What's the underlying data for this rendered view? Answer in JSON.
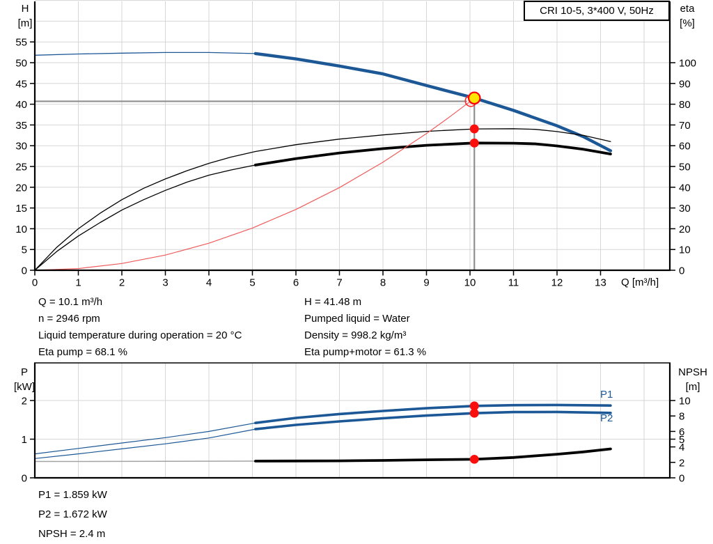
{
  "header": {
    "title": "CRI 10-5, 3*400 V, 50Hz"
  },
  "axis_corner_labels": {
    "h": [
      "H",
      "[m]"
    ],
    "eta": [
      "eta",
      "[%]"
    ],
    "p": [
      "P",
      "[kW]"
    ],
    "npsh": [
      "NPSH",
      "[m]"
    ],
    "q": "Q [m³/h]"
  },
  "curve_labels": {
    "p1": "P1",
    "p2": "P2"
  },
  "info_block": {
    "left": [
      "Q = 10.1 m³/h",
      "n = 2946 rpm",
      "Liquid temperature during operation = 20 °C",
      "Eta pump = 68.1 %"
    ],
    "right": [
      "H = 41.48 m",
      "Pumped liquid = Water",
      "Density = 998.2 kg/m³",
      "Eta pump+motor = 61.3 %"
    ]
  },
  "results_block": [
    "P1 = 1.859 kW",
    "P2 = 1.672 kW",
    "NPSH = 2.4 m"
  ],
  "colors": {
    "blue": "#1c5796",
    "black": "#000000",
    "red": "#fb0e0c",
    "red_line": "#f05a5a",
    "red_ring": "#ff2a2a",
    "yellow": "#ffe600",
    "gray_ref": "#8f8f8f",
    "thin_gray": "#a3a3a3",
    "grid": "#d6d6d6"
  },
  "chart_data": [
    {
      "type": "line",
      "title": "CRI 10-5, 3*400 V, 50Hz",
      "x_axis": {
        "label": "Q [m³/h]",
        "min": 0,
        "max": 14.6,
        "tick_labels": [
          0,
          1,
          2,
          3,
          4,
          5,
          6,
          7,
          8,
          9,
          10,
          11,
          12,
          13
        ],
        "gridlines": [
          1,
          2,
          3,
          4,
          5,
          6,
          7,
          8,
          9,
          10,
          11,
          12,
          13,
          14
        ]
      },
      "y_left": {
        "label": "H [m]",
        "min": 0,
        "max": 65.1,
        "tick_labels": [
          0,
          5,
          10,
          15,
          20,
          25,
          30,
          35,
          40,
          45,
          50,
          55
        ],
        "gridlines": [
          5,
          10,
          15,
          20,
          25,
          30,
          35,
          40,
          45,
          50,
          55,
          60,
          65
        ]
      },
      "y_right": {
        "label": "eta [%]",
        "min": 0,
        "max": 130.2,
        "tick_labels": [
          0,
          10,
          20,
          30,
          40,
          50,
          60,
          70,
          80,
          90,
          100
        ]
      },
      "duty_point": {
        "Q": 10.1,
        "H": 41.48,
        "eta_pump": 68.1,
        "eta_pump_motor": 61.3
      },
      "series": [
        {
          "name": "H curve",
          "axis": "left",
          "color": "#1c5796",
          "w_thin": 1.3,
          "w_bold": 4.4,
          "bold_from": 5.07,
          "points": [
            [
              0,
              51.8
            ],
            [
              1,
              52.1
            ],
            [
              2,
              52.3
            ],
            [
              3,
              52.45
            ],
            [
              4,
              52.45
            ],
            [
              5.07,
              52.2
            ],
            [
              6,
              50.9
            ],
            [
              7,
              49.2
            ],
            [
              8,
              47.3
            ],
            [
              9,
              44.5
            ],
            [
              10.1,
              41.48
            ],
            [
              11,
              38.5
            ],
            [
              12,
              34.8
            ],
            [
              12.6,
              32.2
            ],
            [
              13.23,
              28.8
            ]
          ]
        },
        {
          "name": "Eta pump curve",
          "axis": "right",
          "color": "#000000",
          "w_thin": 1.3,
          "points": [
            [
              0,
              0
            ],
            [
              0.5,
              11
            ],
            [
              1,
              20
            ],
            [
              1.5,
              27.5
            ],
            [
              2,
              34
            ],
            [
              2.5,
              39.5
            ],
            [
              3,
              44
            ],
            [
              3.5,
              48
            ],
            [
              4,
              51.5
            ],
            [
              4.5,
              54.5
            ],
            [
              5.07,
              57.2
            ],
            [
              6,
              60.5
            ],
            [
              7,
              63.2
            ],
            [
              8,
              65.2
            ],
            [
              9,
              66.9
            ],
            [
              10.1,
              68.1
            ],
            [
              11,
              68.2
            ],
            [
              11.5,
              67.9
            ],
            [
              12,
              66.8
            ],
            [
              12.6,
              65
            ],
            [
              13.23,
              62
            ]
          ]
        },
        {
          "name": "Eta pump+motor curve",
          "axis": "right",
          "color": "#000000",
          "w_thin": 1.3,
          "w_bold": 3.8,
          "bold_from": 5.07,
          "points": [
            [
              0,
              0
            ],
            [
              0.5,
              9
            ],
            [
              1,
              16.5
            ],
            [
              1.5,
              23
            ],
            [
              2,
              29
            ],
            [
              2.5,
              34
            ],
            [
              3,
              38.5
            ],
            [
              3.5,
              42.5
            ],
            [
              4,
              45.8
            ],
            [
              4.5,
              48.3
            ],
            [
              5.07,
              50.7
            ],
            [
              6,
              53.8
            ],
            [
              7,
              56.5
            ],
            [
              8,
              58.6
            ],
            [
              9,
              60.2
            ],
            [
              10.1,
              61.3
            ],
            [
              11,
              61.2
            ],
            [
              11.5,
              60.9
            ],
            [
              12,
              59.9
            ],
            [
              12.6,
              58.3
            ],
            [
              13.23,
              56
            ]
          ]
        },
        {
          "name": "System curve",
          "axis": "left",
          "color": "#f05a5a",
          "w_thin": 1.2,
          "points": [
            [
              0,
              0
            ],
            [
              1,
              0.41
            ],
            [
              2,
              1.63
            ],
            [
              3,
              3.66
            ],
            [
              4,
              6.51
            ],
            [
              5,
              10.17
            ],
            [
              6,
              14.64
            ],
            [
              7,
              19.92
            ],
            [
              8,
              26.02
            ],
            [
              9,
              32.93
            ],
            [
              9.5,
              36.7
            ],
            [
              10.02,
              40.8
            ]
          ]
        }
      ],
      "ref_lines": [
        {
          "dir": "h",
          "v": 40.7,
          "q1": 0,
          "q2": 9.93
        },
        {
          "dir": "v",
          "q": 10.1,
          "v1": 0,
          "v2": 40.7
        }
      ],
      "markers": [
        {
          "q": 10.1,
          "v": 68.1,
          "axis": "right",
          "style": "dot",
          "name": "eta-pump-operating-dot"
        },
        {
          "q": 10.1,
          "v": 61.3,
          "axis": "right",
          "style": "dot",
          "name": "eta-pump-motor-operating-dot"
        },
        {
          "q": 10.02,
          "v": 40.8,
          "axis": "left",
          "style": "open",
          "name": "system-curve-end-ring"
        },
        {
          "q": 10.1,
          "v": 41.48,
          "axis": "left",
          "style": "duty",
          "name": "duty-point-marker"
        }
      ]
    },
    {
      "type": "line",
      "x_axis": {
        "label": "",
        "min": 0,
        "max": 14.6,
        "tick_labels": [],
        "gridlines": [
          1,
          2,
          3,
          4,
          5,
          6,
          7,
          8,
          9,
          10,
          11,
          12,
          13,
          14
        ]
      },
      "y_left": {
        "label": "P [kW]",
        "min": 0,
        "max": 2.97,
        "tick_labels": [
          0,
          1,
          2
        ],
        "gridlines": [
          1,
          2
        ]
      },
      "y_right": {
        "label": "NPSH [m]",
        "min": 0,
        "max": 14.86,
        "tick_labels": [
          0,
          2,
          4,
          5,
          6,
          8,
          10
        ]
      },
      "duty_point": {
        "Q": 10.1,
        "P1": 1.859,
        "P2": 1.672,
        "NPSH": 2.4
      },
      "series": [
        {
          "name": "P1 curve",
          "axis": "left",
          "color": "#1c5796",
          "w_thin": 1.2,
          "w_bold": 3.6,
          "bold_from": 5.07,
          "points": [
            [
              0,
              0.62
            ],
            [
              1,
              0.76
            ],
            [
              2,
              0.9
            ],
            [
              3,
              1.04
            ],
            [
              4,
              1.2
            ],
            [
              5.07,
              1.42
            ],
            [
              6,
              1.55
            ],
            [
              7,
              1.65
            ],
            [
              8,
              1.73
            ],
            [
              9,
              1.8
            ],
            [
              10.1,
              1.859
            ],
            [
              11,
              1.88
            ],
            [
              12,
              1.885
            ],
            [
              13.23,
              1.87
            ]
          ]
        },
        {
          "name": "P2 curve",
          "axis": "left",
          "color": "#1c5796",
          "w_thin": 1.2,
          "w_bold": 3.6,
          "bold_from": 5.07,
          "points": [
            [
              0,
              0.5
            ],
            [
              1,
              0.62
            ],
            [
              2,
              0.75
            ],
            [
              3,
              0.88
            ],
            [
              4,
              1.03
            ],
            [
              5.07,
              1.26
            ],
            [
              6,
              1.37
            ],
            [
              7,
              1.46
            ],
            [
              8,
              1.54
            ],
            [
              9,
              1.61
            ],
            [
              10.1,
              1.672
            ],
            [
              11,
              1.7
            ],
            [
              12,
              1.705
            ],
            [
              13.23,
              1.68
            ]
          ]
        },
        {
          "name": "NPSH curve",
          "axis": "right",
          "color": "#000000",
          "thin_color": "#a3a3a3",
          "w_thin": 1.5,
          "w_bold": 3.8,
          "bold_from": 5.07,
          "points": [
            [
              0,
              2.12
            ],
            [
              2,
              2.13
            ],
            [
              4,
              2.15
            ],
            [
              5.07,
              2.16
            ],
            [
              6,
              2.18
            ],
            [
              7,
              2.2
            ],
            [
              8,
              2.25
            ],
            [
              9,
              2.33
            ],
            [
              10.1,
              2.4
            ],
            [
              11,
              2.63
            ],
            [
              12,
              3.05
            ],
            [
              12.6,
              3.35
            ],
            [
              13.23,
              3.74
            ]
          ]
        }
      ],
      "ref_lines": [],
      "markers": [
        {
          "q": 10.1,
          "v": 1.859,
          "axis": "left",
          "style": "dot",
          "name": "p1-operating-dot"
        },
        {
          "q": 10.1,
          "v": 1.672,
          "axis": "left",
          "style": "dot",
          "name": "p2-operating-dot"
        },
        {
          "q": 10.1,
          "v": 2.4,
          "axis": "right",
          "style": "dot",
          "name": "npsh-operating-dot"
        }
      ]
    }
  ]
}
